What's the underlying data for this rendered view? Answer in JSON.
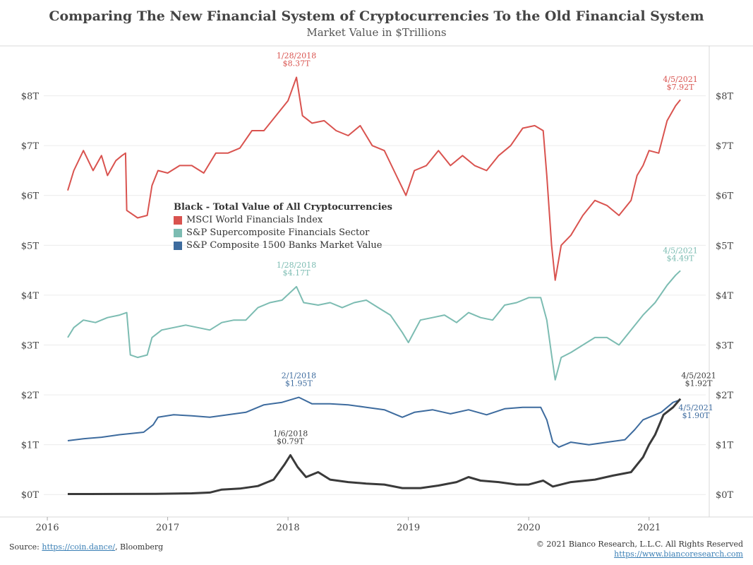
{
  "header": {
    "title": "Comparing The New Financial System of Cryptocurrencies To the Old Financial System",
    "subtitle": "Market Value in $Trillions"
  },
  "legend": {
    "title": "Black - Total Value of All Cryptocurrencies",
    "items": [
      {
        "label": "MSCI World Financials Index",
        "color": "#d9534f"
      },
      {
        "label": "S&P Supercomposite Financials Sector",
        "color": "#7cbcb2"
      },
      {
        "label": "S&P Composite 1500 Banks Market Value",
        "color": "#3d6b9e"
      }
    ]
  },
  "footer": {
    "source_prefix": "Source: ",
    "source_link": "https://coin.dance/",
    "source_suffix": ", Bloomberg",
    "copyright": "© 2021 Bianco Research, L.L.C. All Rights Reserved",
    "website": "https://www.biancoresearch.com"
  },
  "chart_data": {
    "type": "line",
    "title": "Comparing The New Financial System of Cryptocurrencies To the Old Financial System",
    "subtitle": "Market Value in $Trillions",
    "xlabel": "",
    "ylabel": "",
    "xlim": [
      2015.9,
      2021.5
    ],
    "ylim": [
      -0.45,
      9.0
    ],
    "x_ticks": [
      2016,
      2017,
      2018,
      2019,
      2020,
      2021
    ],
    "y_ticks": [
      0,
      1,
      2,
      3,
      4,
      5,
      6,
      7,
      8
    ],
    "y_tick_labels": [
      "$0T",
      "$1T",
      "$2T",
      "$3T",
      "$4T",
      "$5T",
      "$6T",
      "$7T",
      "$8T"
    ],
    "grid": true,
    "series": [
      {
        "name": "MSCI World Financials Index",
        "color": "#d9534f",
        "points": [
          [
            2016.17,
            6.1
          ],
          [
            2016.22,
            6.5
          ],
          [
            2016.3,
            6.9
          ],
          [
            2016.38,
            6.5
          ],
          [
            2016.45,
            6.8
          ],
          [
            2016.5,
            6.4
          ],
          [
            2016.57,
            6.7
          ],
          [
            2016.62,
            6.8
          ],
          [
            2016.65,
            6.85
          ],
          [
            2016.66,
            5.7
          ],
          [
            2016.75,
            5.55
          ],
          [
            2016.83,
            5.6
          ],
          [
            2016.87,
            6.2
          ],
          [
            2016.92,
            6.5
          ],
          [
            2017.0,
            6.45
          ],
          [
            2017.1,
            6.6
          ],
          [
            2017.2,
            6.6
          ],
          [
            2017.3,
            6.45
          ],
          [
            2017.4,
            6.85
          ],
          [
            2017.5,
            6.85
          ],
          [
            2017.6,
            6.95
          ],
          [
            2017.7,
            7.3
          ],
          [
            2017.8,
            7.3
          ],
          [
            2017.9,
            7.6
          ],
          [
            2018.0,
            7.9
          ],
          [
            2018.07,
            8.37
          ],
          [
            2018.12,
            7.6
          ],
          [
            2018.2,
            7.45
          ],
          [
            2018.3,
            7.5
          ],
          [
            2018.4,
            7.3
          ],
          [
            2018.5,
            7.2
          ],
          [
            2018.6,
            7.4
          ],
          [
            2018.7,
            7.0
          ],
          [
            2018.8,
            6.9
          ],
          [
            2018.9,
            6.4
          ],
          [
            2018.98,
            6.0
          ],
          [
            2019.05,
            6.5
          ],
          [
            2019.15,
            6.6
          ],
          [
            2019.25,
            6.9
          ],
          [
            2019.35,
            6.6
          ],
          [
            2019.45,
            6.8
          ],
          [
            2019.55,
            6.6
          ],
          [
            2019.65,
            6.5
          ],
          [
            2019.75,
            6.8
          ],
          [
            2019.85,
            7.0
          ],
          [
            2019.95,
            7.35
          ],
          [
            2020.05,
            7.4
          ],
          [
            2020.12,
            7.3
          ],
          [
            2020.15,
            6.4
          ],
          [
            2020.19,
            5.0
          ],
          [
            2020.22,
            4.3
          ],
          [
            2020.27,
            5.0
          ],
          [
            2020.35,
            5.2
          ],
          [
            2020.45,
            5.6
          ],
          [
            2020.55,
            5.9
          ],
          [
            2020.65,
            5.8
          ],
          [
            2020.75,
            5.6
          ],
          [
            2020.85,
            5.9
          ],
          [
            2020.9,
            6.4
          ],
          [
            2020.95,
            6.6
          ],
          [
            2021.0,
            6.9
          ],
          [
            2021.08,
            6.85
          ],
          [
            2021.15,
            7.5
          ],
          [
            2021.22,
            7.8
          ],
          [
            2021.26,
            7.92
          ]
        ]
      },
      {
        "name": "S&P Supercomposite Financials Sector",
        "color": "#7cbcb2",
        "points": [
          [
            2016.17,
            3.15
          ],
          [
            2016.22,
            3.35
          ],
          [
            2016.3,
            3.5
          ],
          [
            2016.4,
            3.45
          ],
          [
            2016.5,
            3.55
          ],
          [
            2016.6,
            3.6
          ],
          [
            2016.66,
            3.65
          ],
          [
            2016.69,
            2.8
          ],
          [
            2016.75,
            2.75
          ],
          [
            2016.83,
            2.8
          ],
          [
            2016.87,
            3.15
          ],
          [
            2016.95,
            3.3
          ],
          [
            2017.05,
            3.35
          ],
          [
            2017.15,
            3.4
          ],
          [
            2017.25,
            3.35
          ],
          [
            2017.35,
            3.3
          ],
          [
            2017.45,
            3.45
          ],
          [
            2017.55,
            3.5
          ],
          [
            2017.65,
            3.5
          ],
          [
            2017.75,
            3.75
          ],
          [
            2017.85,
            3.85
          ],
          [
            2017.95,
            3.9
          ],
          [
            2018.07,
            4.17
          ],
          [
            2018.13,
            3.85
          ],
          [
            2018.25,
            3.8
          ],
          [
            2018.35,
            3.85
          ],
          [
            2018.45,
            3.75
          ],
          [
            2018.55,
            3.85
          ],
          [
            2018.65,
            3.9
          ],
          [
            2018.75,
            3.75
          ],
          [
            2018.85,
            3.6
          ],
          [
            2018.95,
            3.25
          ],
          [
            2019.0,
            3.05
          ],
          [
            2019.1,
            3.5
          ],
          [
            2019.2,
            3.55
          ],
          [
            2019.3,
            3.6
          ],
          [
            2019.4,
            3.45
          ],
          [
            2019.5,
            3.65
          ],
          [
            2019.6,
            3.55
          ],
          [
            2019.7,
            3.5
          ],
          [
            2019.8,
            3.8
          ],
          [
            2019.9,
            3.85
          ],
          [
            2020.0,
            3.95
          ],
          [
            2020.1,
            3.95
          ],
          [
            2020.15,
            3.5
          ],
          [
            2020.19,
            2.8
          ],
          [
            2020.22,
            2.3
          ],
          [
            2020.27,
            2.75
          ],
          [
            2020.35,
            2.85
          ],
          [
            2020.45,
            3.0
          ],
          [
            2020.55,
            3.15
          ],
          [
            2020.65,
            3.15
          ],
          [
            2020.75,
            3.0
          ],
          [
            2020.85,
            3.3
          ],
          [
            2020.95,
            3.6
          ],
          [
            2021.05,
            3.85
          ],
          [
            2021.15,
            4.2
          ],
          [
            2021.22,
            4.4
          ],
          [
            2021.26,
            4.49
          ]
        ]
      },
      {
        "name": "S&P Composite 1500 Banks Market Value",
        "color": "#3d6b9e",
        "points": [
          [
            2016.17,
            1.08
          ],
          [
            2016.3,
            1.12
          ],
          [
            2016.45,
            1.15
          ],
          [
            2016.6,
            1.2
          ],
          [
            2016.8,
            1.25
          ],
          [
            2016.88,
            1.4
          ],
          [
            2016.92,
            1.55
          ],
          [
            2017.05,
            1.6
          ],
          [
            2017.2,
            1.58
          ],
          [
            2017.35,
            1.55
          ],
          [
            2017.5,
            1.6
          ],
          [
            2017.65,
            1.65
          ],
          [
            2017.8,
            1.8
          ],
          [
            2017.95,
            1.85
          ],
          [
            2018.09,
            1.95
          ],
          [
            2018.2,
            1.82
          ],
          [
            2018.35,
            1.82
          ],
          [
            2018.5,
            1.8
          ],
          [
            2018.65,
            1.75
          ],
          [
            2018.8,
            1.7
          ],
          [
            2018.95,
            1.55
          ],
          [
            2019.05,
            1.65
          ],
          [
            2019.2,
            1.7
          ],
          [
            2019.35,
            1.62
          ],
          [
            2019.5,
            1.7
          ],
          [
            2019.65,
            1.6
          ],
          [
            2019.8,
            1.72
          ],
          [
            2019.95,
            1.75
          ],
          [
            2020.1,
            1.75
          ],
          [
            2020.15,
            1.5
          ],
          [
            2020.2,
            1.05
          ],
          [
            2020.25,
            0.95
          ],
          [
            2020.35,
            1.05
          ],
          [
            2020.5,
            1.0
          ],
          [
            2020.65,
            1.05
          ],
          [
            2020.8,
            1.1
          ],
          [
            2020.88,
            1.3
          ],
          [
            2020.95,
            1.5
          ],
          [
            2021.1,
            1.65
          ],
          [
            2021.2,
            1.85
          ],
          [
            2021.26,
            1.9
          ]
        ]
      },
      {
        "name": "Total Value of All Cryptocurrencies",
        "color": "#3a3a3a",
        "points": [
          [
            2016.17,
            0.01
          ],
          [
            2016.6,
            0.012
          ],
          [
            2016.9,
            0.015
          ],
          [
            2017.2,
            0.025
          ],
          [
            2017.35,
            0.04
          ],
          [
            2017.45,
            0.1
          ],
          [
            2017.6,
            0.12
          ],
          [
            2017.75,
            0.17
          ],
          [
            2017.88,
            0.3
          ],
          [
            2017.97,
            0.6
          ],
          [
            2018.02,
            0.79
          ],
          [
            2018.08,
            0.55
          ],
          [
            2018.15,
            0.35
          ],
          [
            2018.25,
            0.45
          ],
          [
            2018.35,
            0.3
          ],
          [
            2018.5,
            0.25
          ],
          [
            2018.65,
            0.22
          ],
          [
            2018.8,
            0.2
          ],
          [
            2018.95,
            0.13
          ],
          [
            2019.1,
            0.13
          ],
          [
            2019.25,
            0.18
          ],
          [
            2019.4,
            0.25
          ],
          [
            2019.5,
            0.35
          ],
          [
            2019.6,
            0.28
          ],
          [
            2019.75,
            0.25
          ],
          [
            2019.9,
            0.2
          ],
          [
            2020.0,
            0.2
          ],
          [
            2020.12,
            0.28
          ],
          [
            2020.2,
            0.16
          ],
          [
            2020.35,
            0.25
          ],
          [
            2020.55,
            0.3
          ],
          [
            2020.7,
            0.38
          ],
          [
            2020.85,
            0.45
          ],
          [
            2020.95,
            0.75
          ],
          [
            2021.0,
            1.0
          ],
          [
            2021.05,
            1.2
          ],
          [
            2021.12,
            1.6
          ],
          [
            2021.2,
            1.75
          ],
          [
            2021.26,
            1.92
          ]
        ]
      }
    ],
    "annotations": [
      {
        "series": "MSCI World Financials Index",
        "x": 2018.07,
        "y": 8.37,
        "date": "1/28/2018",
        "value": "$8.37T"
      },
      {
        "series": "MSCI World Financials Index",
        "x": 2021.26,
        "y": 7.92,
        "date": "4/5/2021",
        "value": "$7.92T"
      },
      {
        "series": "S&P Supercomposite Financials Sector",
        "x": 2018.07,
        "y": 4.17,
        "date": "1/28/2018",
        "value": "$4.17T"
      },
      {
        "series": "S&P Supercomposite Financials Sector",
        "x": 2021.26,
        "y": 4.49,
        "date": "4/5/2021",
        "value": "$4.49T"
      },
      {
        "series": "S&P Composite 1500 Banks Market Value",
        "x": 2018.09,
        "y": 1.95,
        "date": "2/1/2018",
        "value": "$1.95T"
      },
      {
        "series": "S&P Composite 1500 Banks Market Value",
        "x": 2021.26,
        "y": 1.9,
        "date": "4/5/2021",
        "value": "$1.90T"
      },
      {
        "series": "Total Value of All Cryptocurrencies",
        "x": 2018.02,
        "y": 0.79,
        "date": "1/6/2018",
        "value": "$0.79T"
      },
      {
        "series": "Total Value of All Cryptocurrencies",
        "x": 2021.26,
        "y": 1.92,
        "date": "4/5/2021",
        "value": "$1.92T"
      }
    ]
  }
}
